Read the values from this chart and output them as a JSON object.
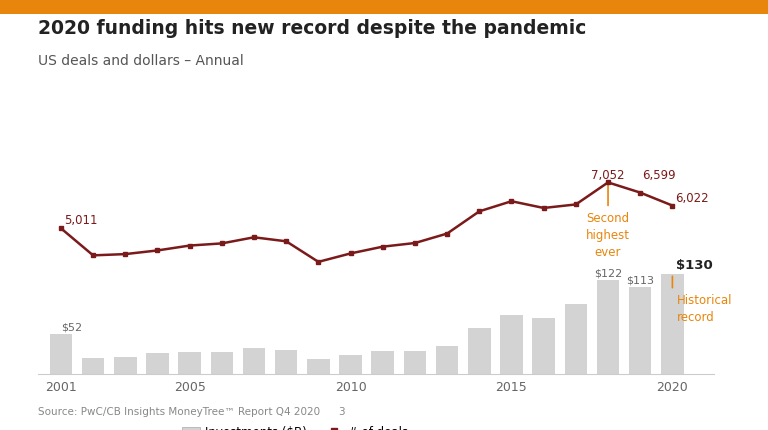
{
  "title": "2020 funding hits new record despite the pandemic",
  "subtitle": "US deals and dollars – Annual",
  "source": "Source: PwC/CB Insights MoneyTree™ Report Q4 2020",
  "page_number": "3",
  "years": [
    2001,
    2002,
    2003,
    2004,
    2005,
    2006,
    2007,
    2008,
    2009,
    2010,
    2011,
    2012,
    2013,
    2014,
    2015,
    2016,
    2017,
    2018,
    2019,
    2020
  ],
  "deals": [
    5011,
    3807,
    3863,
    4026,
    4243,
    4339,
    4611,
    4432,
    3518,
    3893,
    4194,
    4356,
    4776,
    5765,
    6215,
    5915,
    6072,
    7052,
    6599,
    6022
  ],
  "investments": [
    52,
    21,
    22,
    27,
    28,
    29,
    33,
    31,
    19,
    24,
    30,
    30,
    36,
    60,
    76,
    72,
    90,
    122,
    113,
    130
  ],
  "bar_color": "#d3d3d3",
  "line_color": "#7b1a1a",
  "marker_color": "#7b1a1a",
  "annotation_color": "#E8850C",
  "title_color": "#222222",
  "subtitle_color": "#555555",
  "background_color": "#ffffff",
  "top_stripe_color": "#E8850C",
  "label_2001_deals": "5,011",
  "label_2001_inv": "$52",
  "label_2018_deals": "7,052",
  "label_2019_deals": "6,599",
  "label_2020_deals": "6,022",
  "label_2018_inv": "$122",
  "label_2019_inv": "$113",
  "label_2020_inv": "$130",
  "second_highest_text": "Second\nhighest\never",
  "historical_record_text": "Historical\nrecord"
}
